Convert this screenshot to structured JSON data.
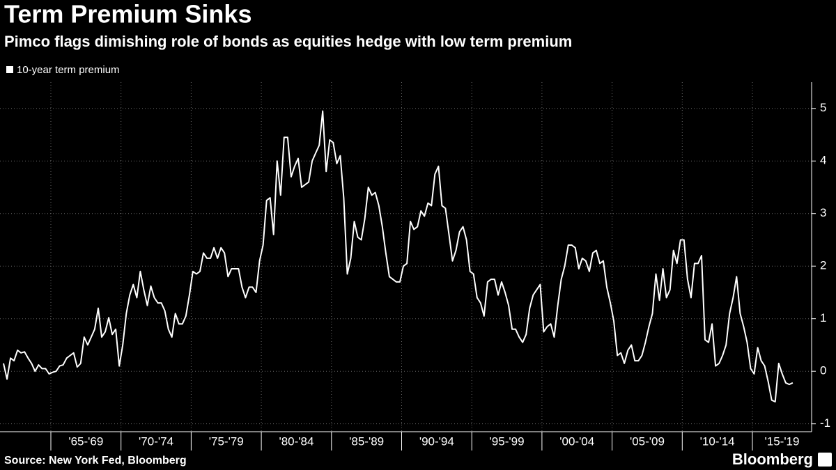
{
  "chart_data": {
    "type": "line",
    "title": "Term Premium Sinks",
    "subtitle": "Pimco flags dimishing role of bonds as equities hedge with low term premium",
    "source": "Source: New York Fed, Bloomberg",
    "brand": "Bloomberg",
    "categories": [
      null,
      "'65-'69",
      "'70-'74",
      "'75-'79",
      "'80-'84",
      "'85-'89",
      "'90-'94",
      "'95-'99",
      "'00-'04",
      "'05-'09",
      "'10-'14",
      "'15-'19"
    ],
    "series": [
      {
        "name": "10-year term premium",
        "color": "#ffffff",
        "values": [
          [
            0.15,
            -0.15,
            0.25,
            0.2,
            0.4,
            0.35,
            0.37,
            0.25,
            0.15,
            0.0,
            0.12,
            0.05,
            0.05,
            -0.05
          ],
          [
            -0.02,
            0.0,
            0.1,
            0.12,
            0.25,
            0.3,
            0.35,
            0.08,
            0.15,
            0.65,
            0.5,
            0.65,
            0.8,
            1.2,
            0.65,
            0.75,
            1.02,
            0.7,
            0.8,
            0.1
          ],
          [
            0.5,
            1.1,
            1.45,
            1.65,
            1.4,
            1.9,
            1.55,
            1.25,
            1.62,
            1.4,
            1.3,
            1.3,
            1.15,
            0.8,
            0.65,
            1.1,
            0.9,
            0.9,
            1.05,
            1.45
          ],
          [
            1.9,
            1.85,
            1.9,
            2.25,
            2.15,
            2.15,
            2.35,
            2.15,
            2.35,
            2.25,
            1.8,
            1.95,
            1.95,
            1.95,
            1.6,
            1.4,
            1.6,
            1.6,
            1.5,
            2.1
          ],
          [
            2.4,
            3.25,
            3.3,
            2.6,
            4.0,
            3.35,
            4.45,
            4.45,
            3.7,
            3.9,
            4.05,
            3.5,
            3.55,
            3.6,
            4.0,
            4.15,
            4.3,
            4.95,
            3.8,
            4.4
          ],
          [
            4.35,
            3.95,
            4.1,
            3.3,
            1.85,
            2.15,
            2.85,
            2.55,
            2.5,
            2.9,
            3.5,
            3.35,
            3.4,
            3.15,
            2.75,
            2.25,
            1.8,
            1.75,
            1.7,
            1.7
          ],
          [
            2.0,
            2.05,
            2.85,
            2.7,
            2.75,
            3.05,
            2.95,
            3.2,
            3.15,
            3.75,
            3.9,
            3.15,
            3.1,
            2.6,
            2.1,
            2.3,
            2.65,
            2.75,
            2.5,
            1.9
          ],
          [
            1.85,
            1.4,
            1.3,
            1.05,
            1.7,
            1.75,
            1.75,
            1.45,
            1.7,
            1.5,
            1.25,
            0.8,
            0.8,
            0.65,
            0.55,
            0.7,
            1.2,
            1.45,
            1.55,
            1.65
          ],
          [
            0.75,
            0.85,
            0.9,
            0.65,
            1.25,
            1.75,
            2.0,
            2.4,
            2.4,
            2.35,
            1.95,
            2.15,
            2.1,
            1.9,
            2.25,
            2.3,
            2.05,
            2.1,
            1.6,
            1.3
          ],
          [
            0.95,
            0.3,
            0.35,
            0.15,
            0.4,
            0.5,
            0.2,
            0.2,
            0.3,
            0.55,
            0.85,
            1.1,
            1.85,
            1.35,
            1.95,
            1.4,
            1.55,
            2.3,
            2.05,
            2.5
          ],
          [
            2.5,
            1.75,
            1.4,
            2.05,
            2.05,
            2.2,
            0.6,
            0.55,
            0.9,
            0.1,
            0.15,
            0.3,
            0.5,
            1.1,
            1.4,
            1.8,
            1.1,
            0.85,
            0.55,
            0.05
          ],
          [
            -0.05,
            0.45,
            0.2,
            0.1,
            -0.2,
            -0.55,
            -0.58,
            0.15,
            -0.05,
            -0.22,
            -0.25,
            -0.22
          ]
        ]
      }
    ],
    "ylim": [
      -1.15,
      5.5
    ],
    "yticks": [
      -1,
      0,
      1,
      2,
      3,
      4,
      5
    ],
    "grid": true
  }
}
